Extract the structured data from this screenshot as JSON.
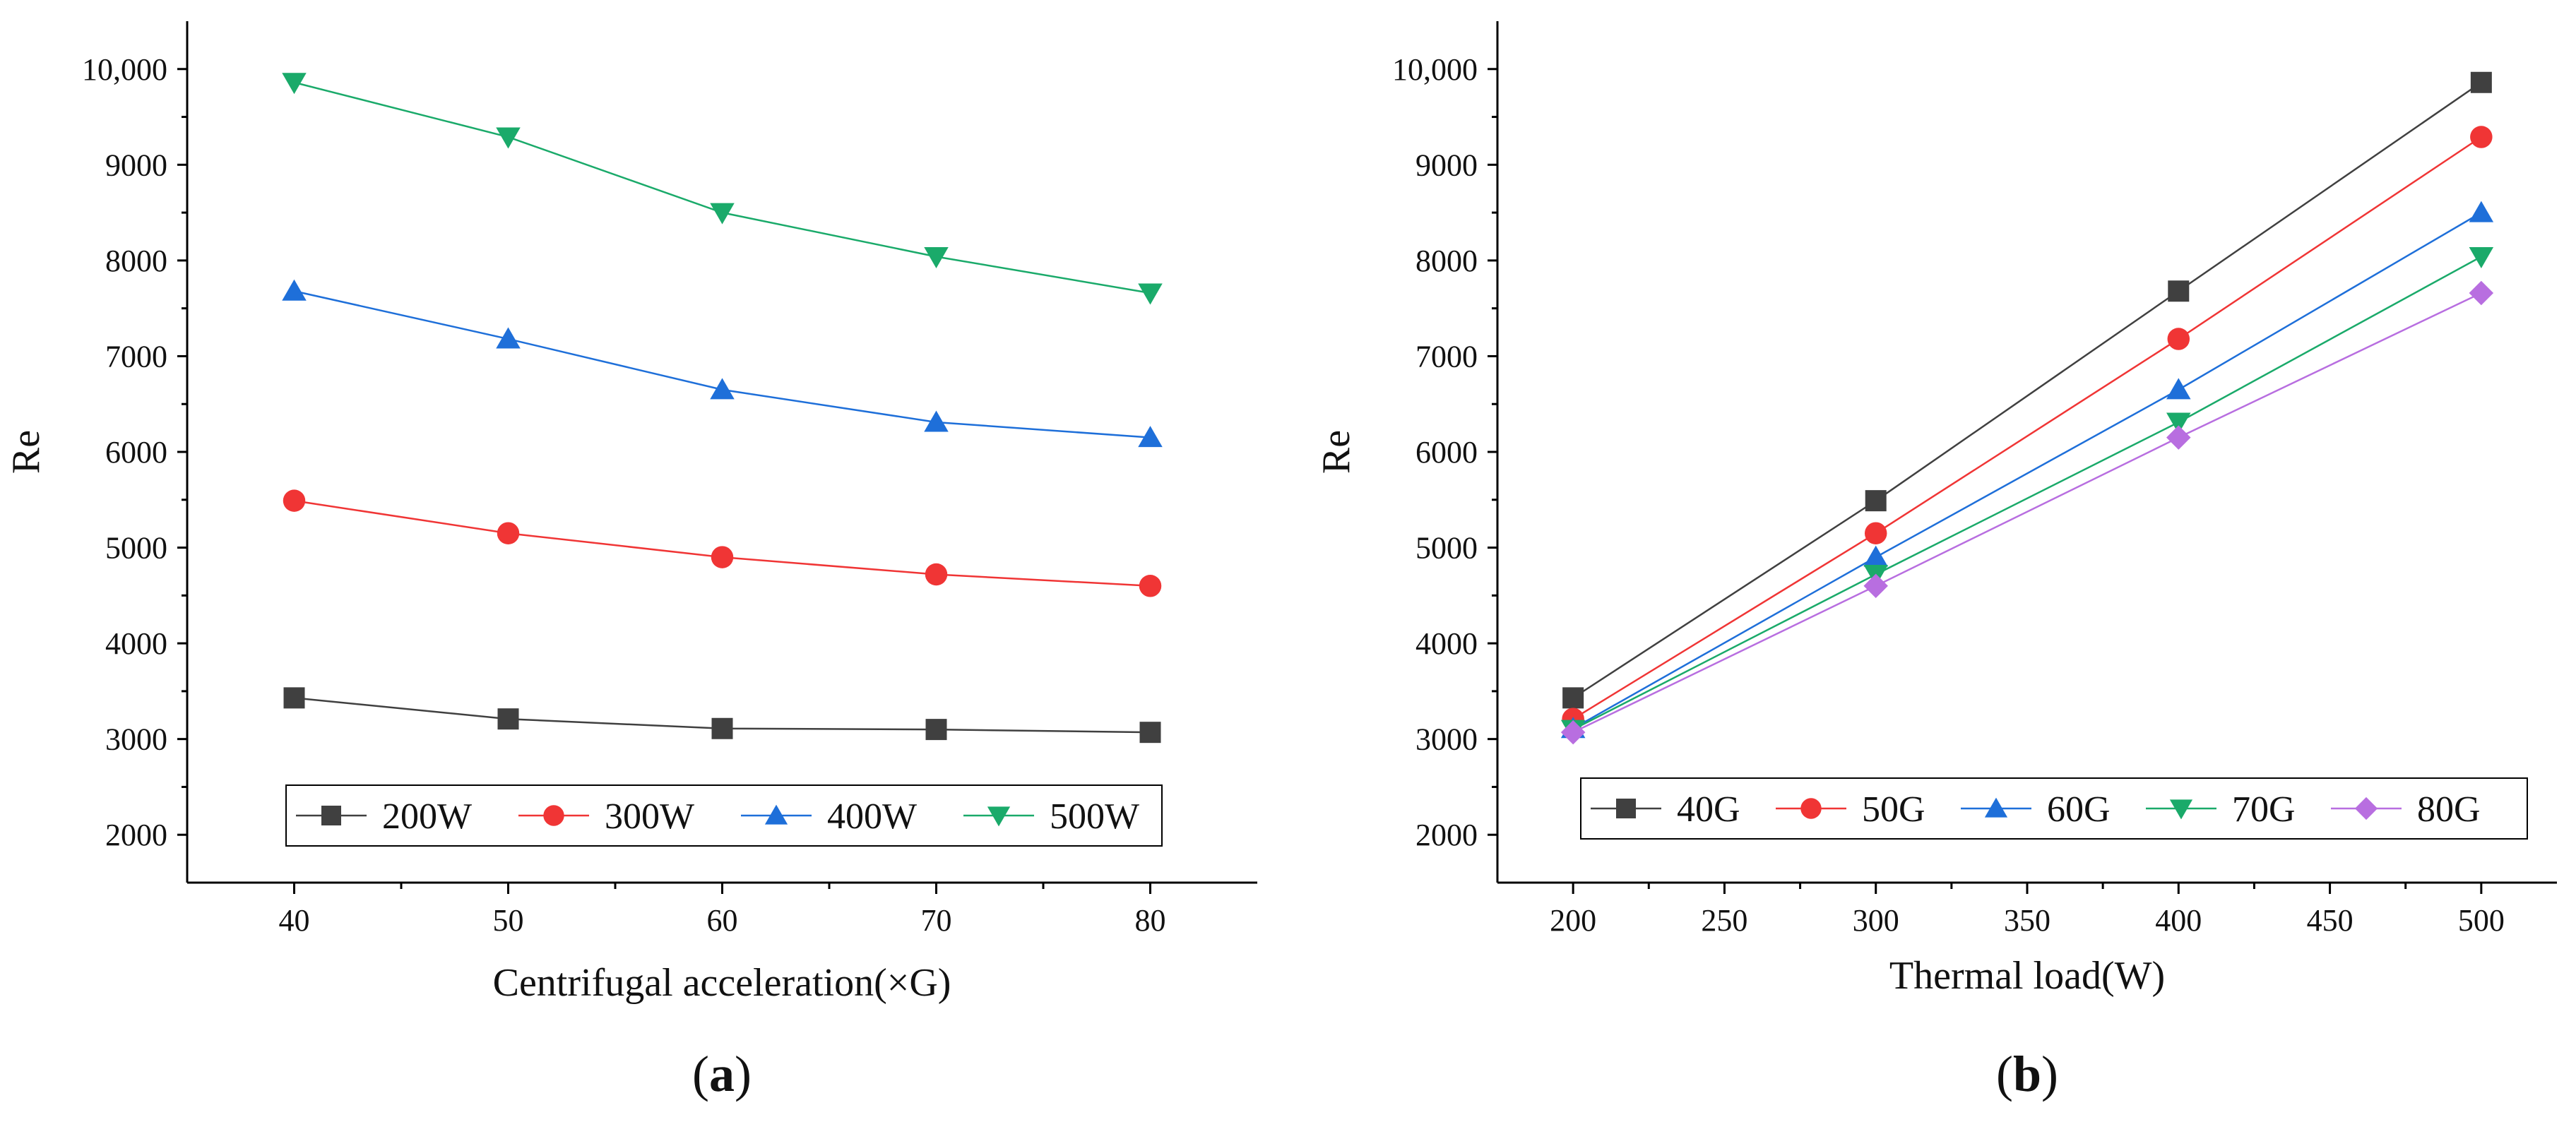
{
  "chart_data": [
    {
      "type": "line",
      "panel_label": "(a)",
      "panel_letter": "a",
      "xlabel": "Centrifugal acceleration(×G)",
      "ylabel": "Re",
      "xlim": [
        35,
        85
      ],
      "ylim": [
        1500,
        10500
      ],
      "xticks": [
        40,
        50,
        60,
        70,
        80
      ],
      "xtick_labels": [
        "40",
        "50",
        "60",
        "70",
        "80"
      ],
      "yticks": [
        2000,
        3000,
        4000,
        5000,
        6000,
        7000,
        8000,
        9000,
        10000
      ],
      "ytick_labels": [
        "2000",
        "3000",
        "4000",
        "5000",
        "6000",
        "7000",
        "8000",
        "9000",
        "10,000"
      ],
      "x": [
        40,
        50,
        60,
        70,
        80
      ],
      "series": [
        {
          "name": "200W",
          "color": "#404040",
          "marker": "square",
          "values": [
            3430,
            3210,
            3110,
            3100,
            3070
          ]
        },
        {
          "name": "300W",
          "color": "#f03535",
          "marker": "circle",
          "values": [
            5490,
            5150,
            4900,
            4720,
            4600
          ]
        },
        {
          "name": "400W",
          "color": "#1e6fd9",
          "marker": "triangle-up",
          "values": [
            7680,
            7180,
            6650,
            6310,
            6150
          ]
        },
        {
          "name": "500W",
          "color": "#1aaa6a",
          "marker": "triangle-down",
          "values": [
            9860,
            9290,
            8500,
            8040,
            7660
          ]
        }
      ],
      "legend_position": "bottom"
    },
    {
      "type": "line",
      "panel_label": "(b)",
      "panel_letter": "b",
      "xlabel": "Thermal load(W)",
      "ylabel": "Re",
      "xlim": [
        175,
        525
      ],
      "ylim": [
        1500,
        10500
      ],
      "xticks": [
        200,
        250,
        300,
        350,
        400,
        450,
        500
      ],
      "xtick_labels": [
        "200",
        "250",
        "300",
        "350",
        "400",
        "450",
        "500"
      ],
      "yticks": [
        2000,
        3000,
        4000,
        5000,
        6000,
        7000,
        8000,
        9000,
        10000
      ],
      "ytick_labels": [
        "2000",
        "3000",
        "4000",
        "5000",
        "6000",
        "7000",
        "8000",
        "9000",
        "10,000"
      ],
      "x": [
        200,
        300,
        400,
        500
      ],
      "series": [
        {
          "name": "40G",
          "color": "#404040",
          "marker": "square",
          "values": [
            3430,
            5490,
            7680,
            9860
          ]
        },
        {
          "name": "50G",
          "color": "#f03535",
          "marker": "circle",
          "values": [
            3210,
            5150,
            7180,
            9290
          ]
        },
        {
          "name": "60G",
          "color": "#1e6fd9",
          "marker": "triangle-up",
          "values": [
            3110,
            4900,
            6650,
            8500
          ]
        },
        {
          "name": "70G",
          "color": "#1aaa6a",
          "marker": "triangle-down",
          "values": [
            3100,
            4720,
            6310,
            8040
          ]
        },
        {
          "name": "80G",
          "color": "#b86ee0",
          "marker": "diamond",
          "values": [
            3070,
            4600,
            6150,
            7660
          ]
        }
      ],
      "legend_position": "bottom"
    }
  ]
}
